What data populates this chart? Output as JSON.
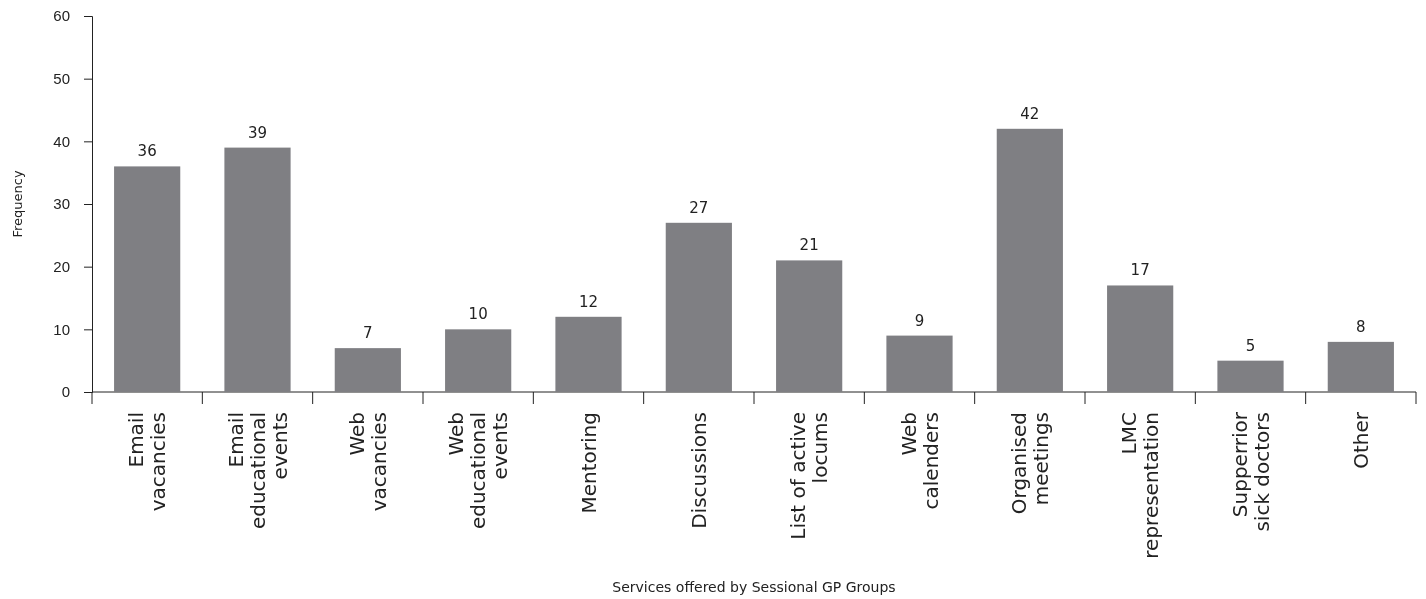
{
  "chart_data": {
    "type": "bar",
    "xlabel": "Services offered by Sessional GP Groups",
    "ylabel": "Frequency",
    "categories": [
      "Email\nvacancies",
      "Email\neducational\nevents",
      "Web\nvacancies",
      "Web\neducational\nevents",
      "Mentoring",
      "Discussions",
      "List of active\nlocums",
      "Web\ncalenders",
      "Organised\nmeetings",
      "LMC\nrepresentation",
      "Supperrior\nsick doctors",
      "Other"
    ],
    "values": [
      36,
      39,
      7,
      10,
      12,
      27,
      21,
      9,
      42,
      17,
      5,
      8
    ],
    "color": "#7f7f83",
    "ylim": [
      0,
      60
    ],
    "yticks": [
      0,
      10,
      20,
      30,
      40,
      50,
      60
    ],
    "data_labels": true,
    "grid": false
  }
}
